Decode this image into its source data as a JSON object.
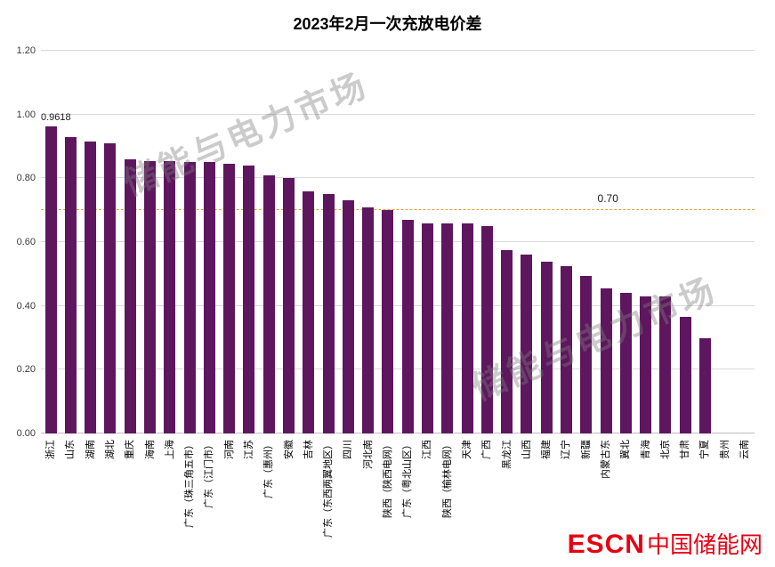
{
  "title": "2023年2月一次充放电价差",
  "chart_data": {
    "type": "bar",
    "title": "2023年2月一次充放电价差",
    "categories": [
      "浙江",
      "山东",
      "湖南",
      "湖北",
      "重庆",
      "海南",
      "上海",
      "广东（珠三角五市）",
      "广东（江门市）",
      "河南",
      "江苏",
      "广东（惠州）",
      "安徽",
      "吉林",
      "广东（东西两翼地区）",
      "四川",
      "河北南",
      "陕西（陕西电网）",
      "广东（粤北山区）",
      "江西",
      "陕西（榆林电网）",
      "天津",
      "广西",
      "黑龙江",
      "山西",
      "福建",
      "辽宁",
      "新疆",
      "内蒙古东",
      "冀北",
      "青海",
      "北京",
      "甘肃",
      "宁夏",
      "贵州",
      "云南"
    ],
    "values": [
      0.9618,
      0.93,
      0.915,
      0.91,
      0.86,
      0.855,
      0.855,
      0.85,
      0.85,
      0.845,
      0.84,
      0.81,
      0.8,
      0.76,
      0.75,
      0.73,
      0.71,
      0.7,
      0.67,
      0.66,
      0.66,
      0.66,
      0.65,
      0.575,
      0.56,
      0.54,
      0.525,
      0.495,
      0.455,
      0.44,
      0.43,
      0.43,
      0.365,
      0.3,
      0,
      0
    ],
    "xlabel": "",
    "ylabel": "",
    "ylim": [
      0,
      1.2
    ],
    "ytick_step": 0.2,
    "grid": true,
    "legend": "none",
    "bar_color": "#5e165e",
    "reference_line": {
      "value": 0.7,
      "label": "0.70",
      "color": "#e2a23b",
      "style": "dashed"
    },
    "annotations": [
      {
        "text": "0.9618",
        "category_index": 0,
        "value": 0.9618
      }
    ]
  },
  "watermark": {
    "text": "储能与电力市场"
  },
  "footer_logo": {
    "escn": "ESCN",
    "site": "中国储能网",
    "color": "#e60012"
  }
}
